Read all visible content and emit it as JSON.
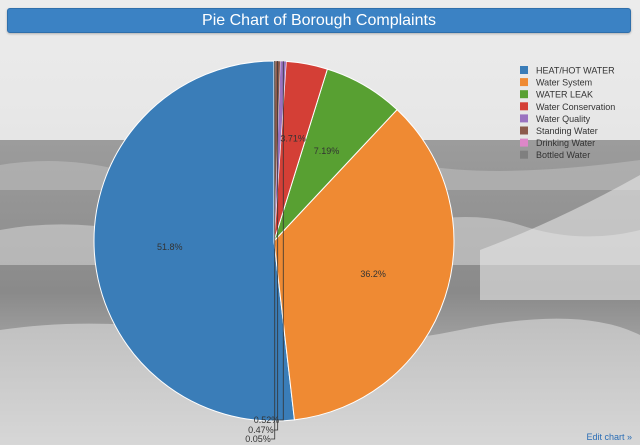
{
  "title": "Pie Chart of Borough Complaints",
  "edit_link": "Edit chart »",
  "chart_data": {
    "type": "pie",
    "title": "Pie Chart of Borough Complaints",
    "legend_position": "top-right",
    "direction": "counterclockwise",
    "start_angle_deg": 90,
    "labels": [
      "HEAT/HOT WATER",
      "Water System",
      "WATER LEAK",
      "Water Conservation",
      "Water Quality",
      "Standing Water",
      "Drinking Water",
      "Bottled Water"
    ],
    "values": [
      51.8,
      36.2,
      7.19,
      3.71,
      0.52,
      0.47,
      0.05,
      0.04
    ],
    "value_labels": [
      "51.8%",
      "36.2%",
      "7.19%",
      "3.71%",
      "0.52%",
      "0.47%",
      "0.05%",
      ""
    ],
    "colors": [
      "#3a7db8",
      "#ef8a33",
      "#58a032",
      "#d43f36",
      "#9a72c0",
      "#8c5a4c",
      "#dd87c8",
      "#7f7f7f"
    ]
  }
}
